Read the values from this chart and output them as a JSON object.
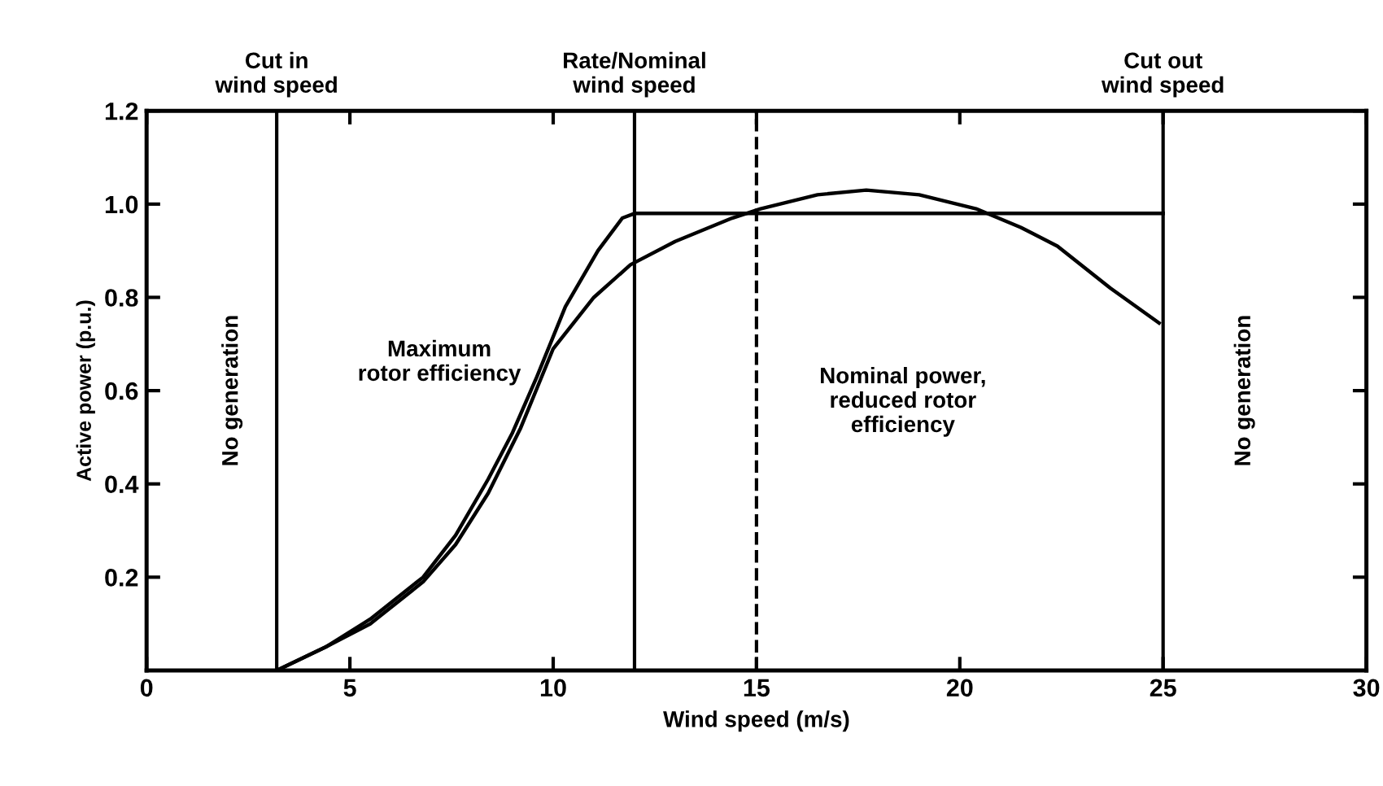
{
  "chart_data": {
    "type": "line",
    "xlabel": "Wind speed (m/s)",
    "ylabel": "Active power (p.u.)",
    "xlim": [
      0,
      30
    ],
    "xticks": [
      0,
      5,
      10,
      15,
      20,
      25,
      30
    ],
    "ylim": [
      0,
      1.2
    ],
    "yticks": [
      {
        "value": 0.2,
        "label": "0.2"
      },
      {
        "value": 0.4,
        "label": "0.4"
      },
      {
        "value": 0.6,
        "label": "0.6"
      },
      {
        "value": 0.8,
        "label": "0.8"
      },
      {
        "value": 1.0,
        "label": "1.0"
      },
      {
        "value": 1.2,
        "label": "1.2"
      }
    ],
    "grid": false,
    "legend": false,
    "marker": "none",
    "line_style": "solid",
    "series": [
      {
        "color": "#000000",
        "x": [
          3.2,
          4.4,
          5.5,
          6.8,
          7.6,
          8.4,
          9.0,
          9.6,
          10.3,
          11.1,
          11.7,
          12.0,
          25.0
        ],
        "values": [
          0.0,
          0.05,
          0.11,
          0.2,
          0.29,
          0.41,
          0.51,
          0.63,
          0.78,
          0.9,
          0.97,
          0.98,
          0.98
        ]
      },
      {
        "color": "#000000",
        "x": [
          3.2,
          4.4,
          5.5,
          6.8,
          7.6,
          8.4,
          9.2,
          10.0,
          11.0,
          11.9,
          13.0,
          14.4,
          15.1,
          16.5,
          17.7,
          19.0,
          20.4,
          21.5,
          22.4,
          23.7,
          24.9
        ],
        "values": [
          0.0,
          0.05,
          0.1,
          0.19,
          0.27,
          0.38,
          0.52,
          0.69,
          0.8,
          0.87,
          0.92,
          0.97,
          0.99,
          1.02,
          1.03,
          1.02,
          0.99,
          0.95,
          0.91,
          0.82,
          0.745
        ]
      }
    ],
    "ref_lines": [
      {
        "axis": "x",
        "value": 3.2,
        "label": "Cut in\nwind speed",
        "line_style": "solid",
        "color": "#000000"
      },
      {
        "axis": "x",
        "value": 12,
        "label": "Rate/Nominal\nwind speed",
        "line_style": "solid",
        "color": "#000000"
      },
      {
        "axis": "x",
        "value": 15,
        "label": null,
        "line_style": "dashed",
        "color": "#000000"
      },
      {
        "axis": "x",
        "value": 25,
        "label": "Cut out\nwind speed",
        "line_style": "solid",
        "color": "#000000"
      }
    ],
    "annotations": [
      "No generation",
      "Maximum\nrotor efficiency",
      "Nominal power,\nreduced rotor\nefficiency",
      "No generation"
    ]
  }
}
